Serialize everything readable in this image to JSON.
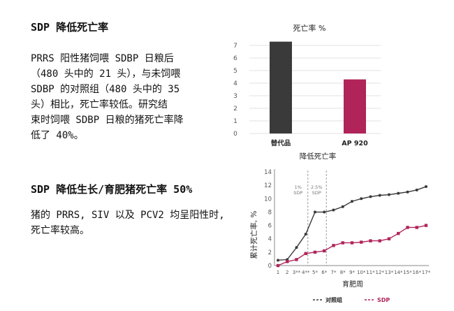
{
  "sections": [
    {
      "heading": "SDP 降低死亡率",
      "paragraph_lines": [
        "PRRS 阳性猪饲喂 SDBP 日粮后",
        "（480 头中的 21 头），与未饲喂",
        "SDBP 的对照组（480 头中的 35",
        "头）相比，死亡率较低。研究结",
        "束时饲喂 SDBP 日粮的猪死亡率降",
        "低了 40%。"
      ]
    },
    {
      "heading": "SDP 降低生长/育肥猪死亡率 50%",
      "paragraph_lines": [
        "猪的 PRRS, SIV 以及 PCV2 均呈阳性时,",
        "死亡率较高。"
      ]
    }
  ],
  "colors": {
    "dark": "#3a3a3a",
    "accent": "#b0245a",
    "grid": "#e2e2e2",
    "axis_text": "#555555",
    "divider": "#9a9a9a"
  },
  "chart_data": [
    {
      "type": "bar",
      "title": "死亡率 %",
      "xlabel": "降低死亡率",
      "ylabel": "",
      "categories": [
        "替代品",
        "AP 920"
      ],
      "values": [
        7.3,
        4.3
      ],
      "bar_colors": [
        "#3a3a3a",
        "#b0245a"
      ],
      "ylim": [
        0,
        7
      ],
      "yticks": [
        0,
        1,
        2,
        3,
        4,
        5,
        6,
        7
      ],
      "grid": true
    },
    {
      "type": "line",
      "title": "",
      "xlabel": "育肥周",
      "ylabel": "累计死亡率, %",
      "x": [
        "1",
        "2",
        "3**",
        "4**",
        "5*",
        "6*",
        "7*",
        "8*",
        "9*",
        "10*",
        "11*",
        "12*",
        "13*",
        "14*",
        "15*",
        "16*",
        "17*"
      ],
      "ylim": [
        0,
        14
      ],
      "yticks": [
        0,
        2,
        4,
        6,
        8,
        10,
        12,
        14
      ],
      "grid": false,
      "legend_position": "bottom-right",
      "series": [
        {
          "name": "对照组",
          "color": "#3a3a3a",
          "values": [
            0.8,
            0.9,
            2.7,
            4.7,
            8.0,
            8.0,
            8.3,
            8.8,
            9.6,
            10.0,
            10.3,
            10.5,
            10.6,
            10.8,
            11.0,
            11.3,
            11.8
          ]
        },
        {
          "name": "SDP",
          "color": "#b0245a",
          "values": [
            0.0,
            0.6,
            0.9,
            1.8,
            2.0,
            2.2,
            3.0,
            3.4,
            3.4,
            3.5,
            3.7,
            3.7,
            4.0,
            4.8,
            5.7,
            5.7,
            6.0
          ]
        }
      ],
      "annotations": [
        {
          "text_lines": [
            "1%",
            "SDP"
          ],
          "x_index": 3
        },
        {
          "text_lines": [
            "2.5%",
            "SDP"
          ],
          "x_index": 5
        }
      ]
    }
  ]
}
